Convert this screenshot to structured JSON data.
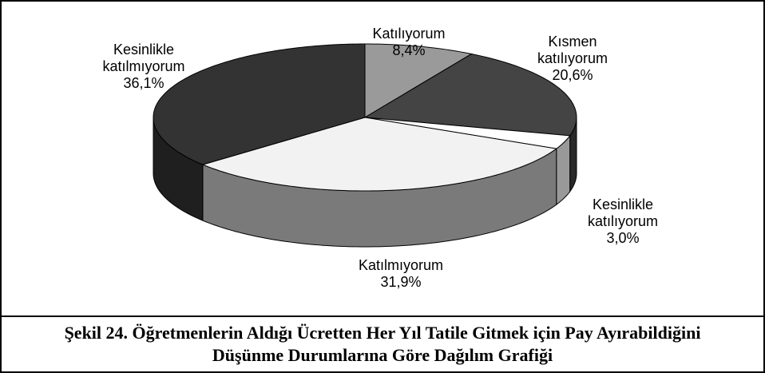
{
  "chart_data": {
    "type": "pie3d",
    "categories": [
      "Katılıyorum",
      "Kısmen katılıyorum",
      "Kesinlikle katılıyorum",
      "Katılmıyorum",
      "Kesinlikle katılmıyorum"
    ],
    "values": [
      8.4,
      20.6,
      3.0,
      31.9,
      36.1
    ],
    "value_labels": [
      "8,4%",
      "20,6%",
      "3,0%",
      "31,9%",
      "36,1%"
    ],
    "colors": [
      "#9a9a9a",
      "#444444",
      "#ffffff",
      "#f2f2f2",
      "#333333"
    ],
    "caption": "Şekil 24. Öğretmenlerin Aldığı Ücretten Her Yıl Tatile Gitmek için Pay Ayırabildiğini Düşünme Durumlarına Göre Dağılım Grafiği"
  }
}
